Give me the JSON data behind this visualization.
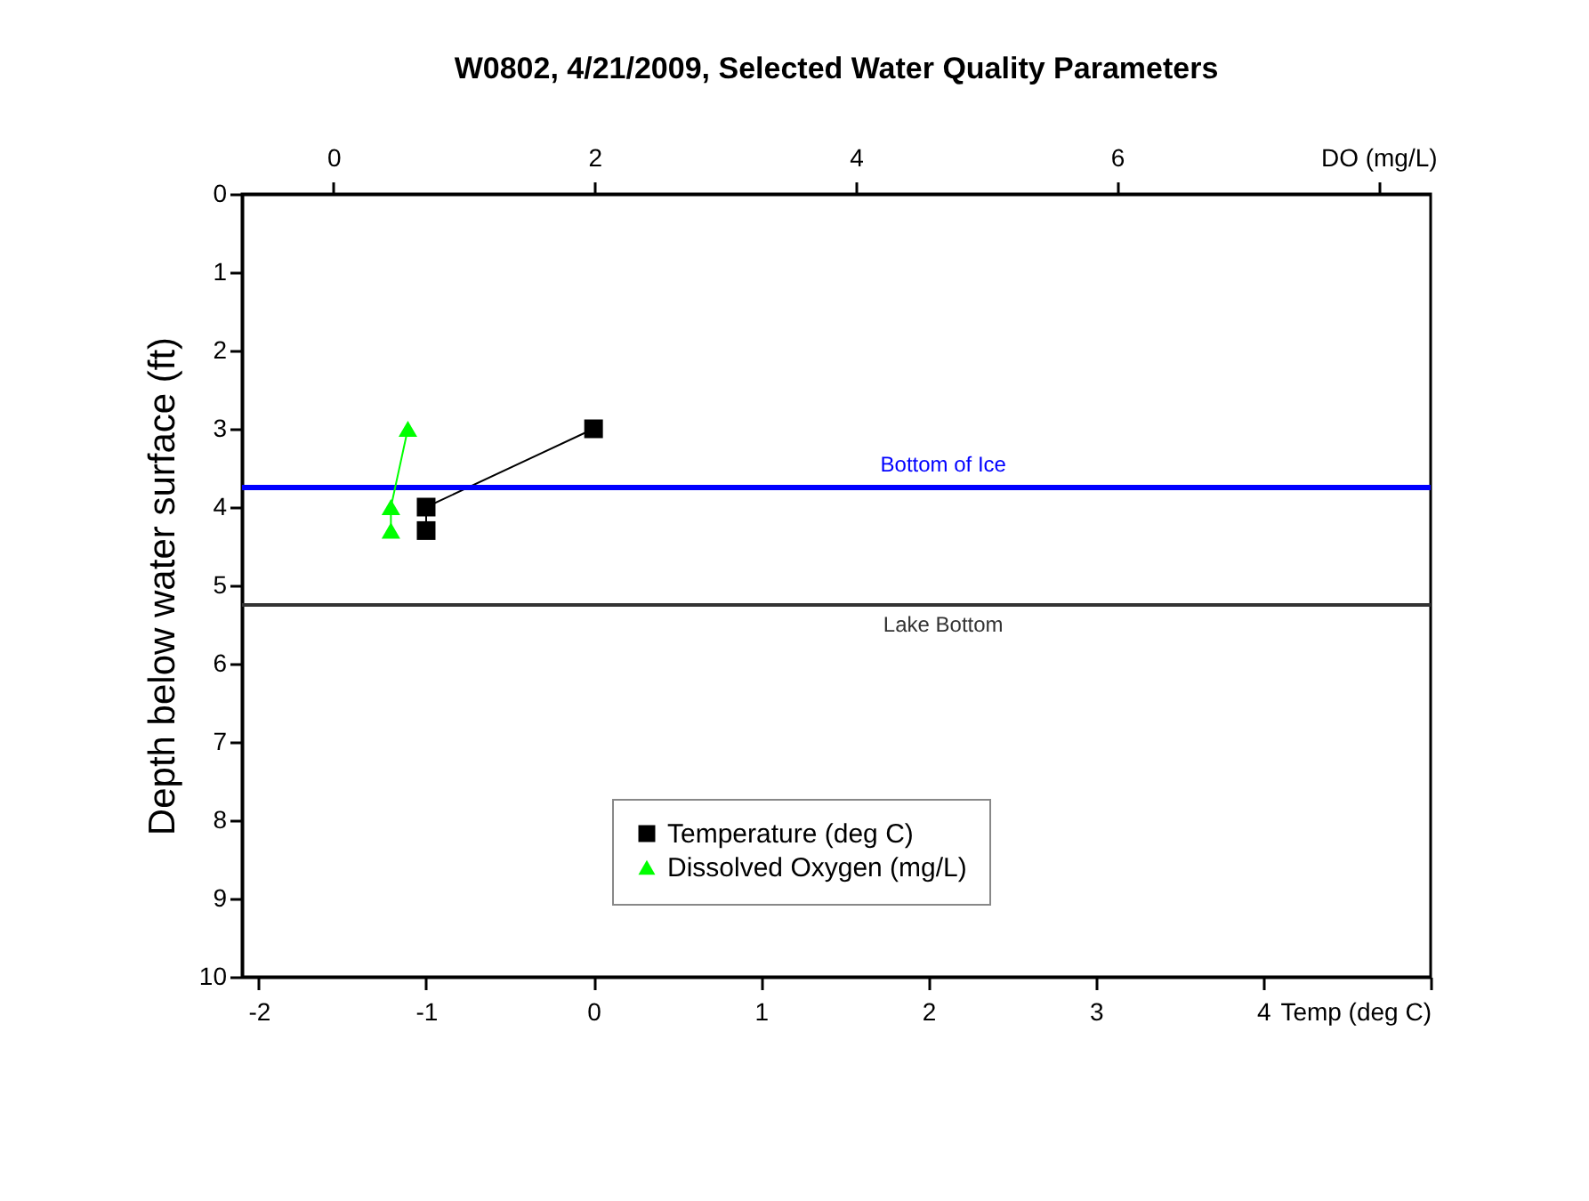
{
  "chart_data": {
    "type": "line",
    "title": "W0802, 4/21/2009, Selected Water Quality Parameters",
    "ylabel": "Depth below water surface (ft)",
    "xlim": [
      -2.1,
      5
    ],
    "xticks": [
      -2,
      -1,
      0,
      1,
      2,
      3,
      4,
      {
        "value": 5,
        "label": "Temp (deg C)"
      }
    ],
    "x2lim": [
      -0.7,
      8.4
    ],
    "x2ticks": [
      0,
      2,
      4,
      6,
      {
        "value": 8,
        "label": "DO (mg/L)"
      }
    ],
    "ylim": [
      10,
      0
    ],
    "yticks": [
      0,
      1,
      2,
      3,
      4,
      5,
      6,
      7,
      8,
      9,
      10
    ],
    "grid": false,
    "legend": "bottom",
    "line_style": "solid",
    "series": [
      {
        "name": "Temperature (deg C)",
        "color": "#000000",
        "marker": "square",
        "x": [
          0,
          -1,
          -1
        ],
        "values": [
          3,
          4,
          4.3
        ]
      },
      {
        "name": "Dissolved Oxygen (mg/L)",
        "color": "#00ff00",
        "marker": "triangle",
        "axis": "x2",
        "x": [
          0.57,
          0.44,
          0.44
        ],
        "values": [
          3,
          4,
          4.3
        ]
      }
    ],
    "ref_lines": [
      {
        "axis": "y",
        "value": 3.75,
        "label": "Bottom of Ice",
        "color": "#0000ff"
      },
      {
        "axis": "y",
        "value": 5.25,
        "label": "Lake Bottom",
        "color": "#333333"
      }
    ]
  }
}
